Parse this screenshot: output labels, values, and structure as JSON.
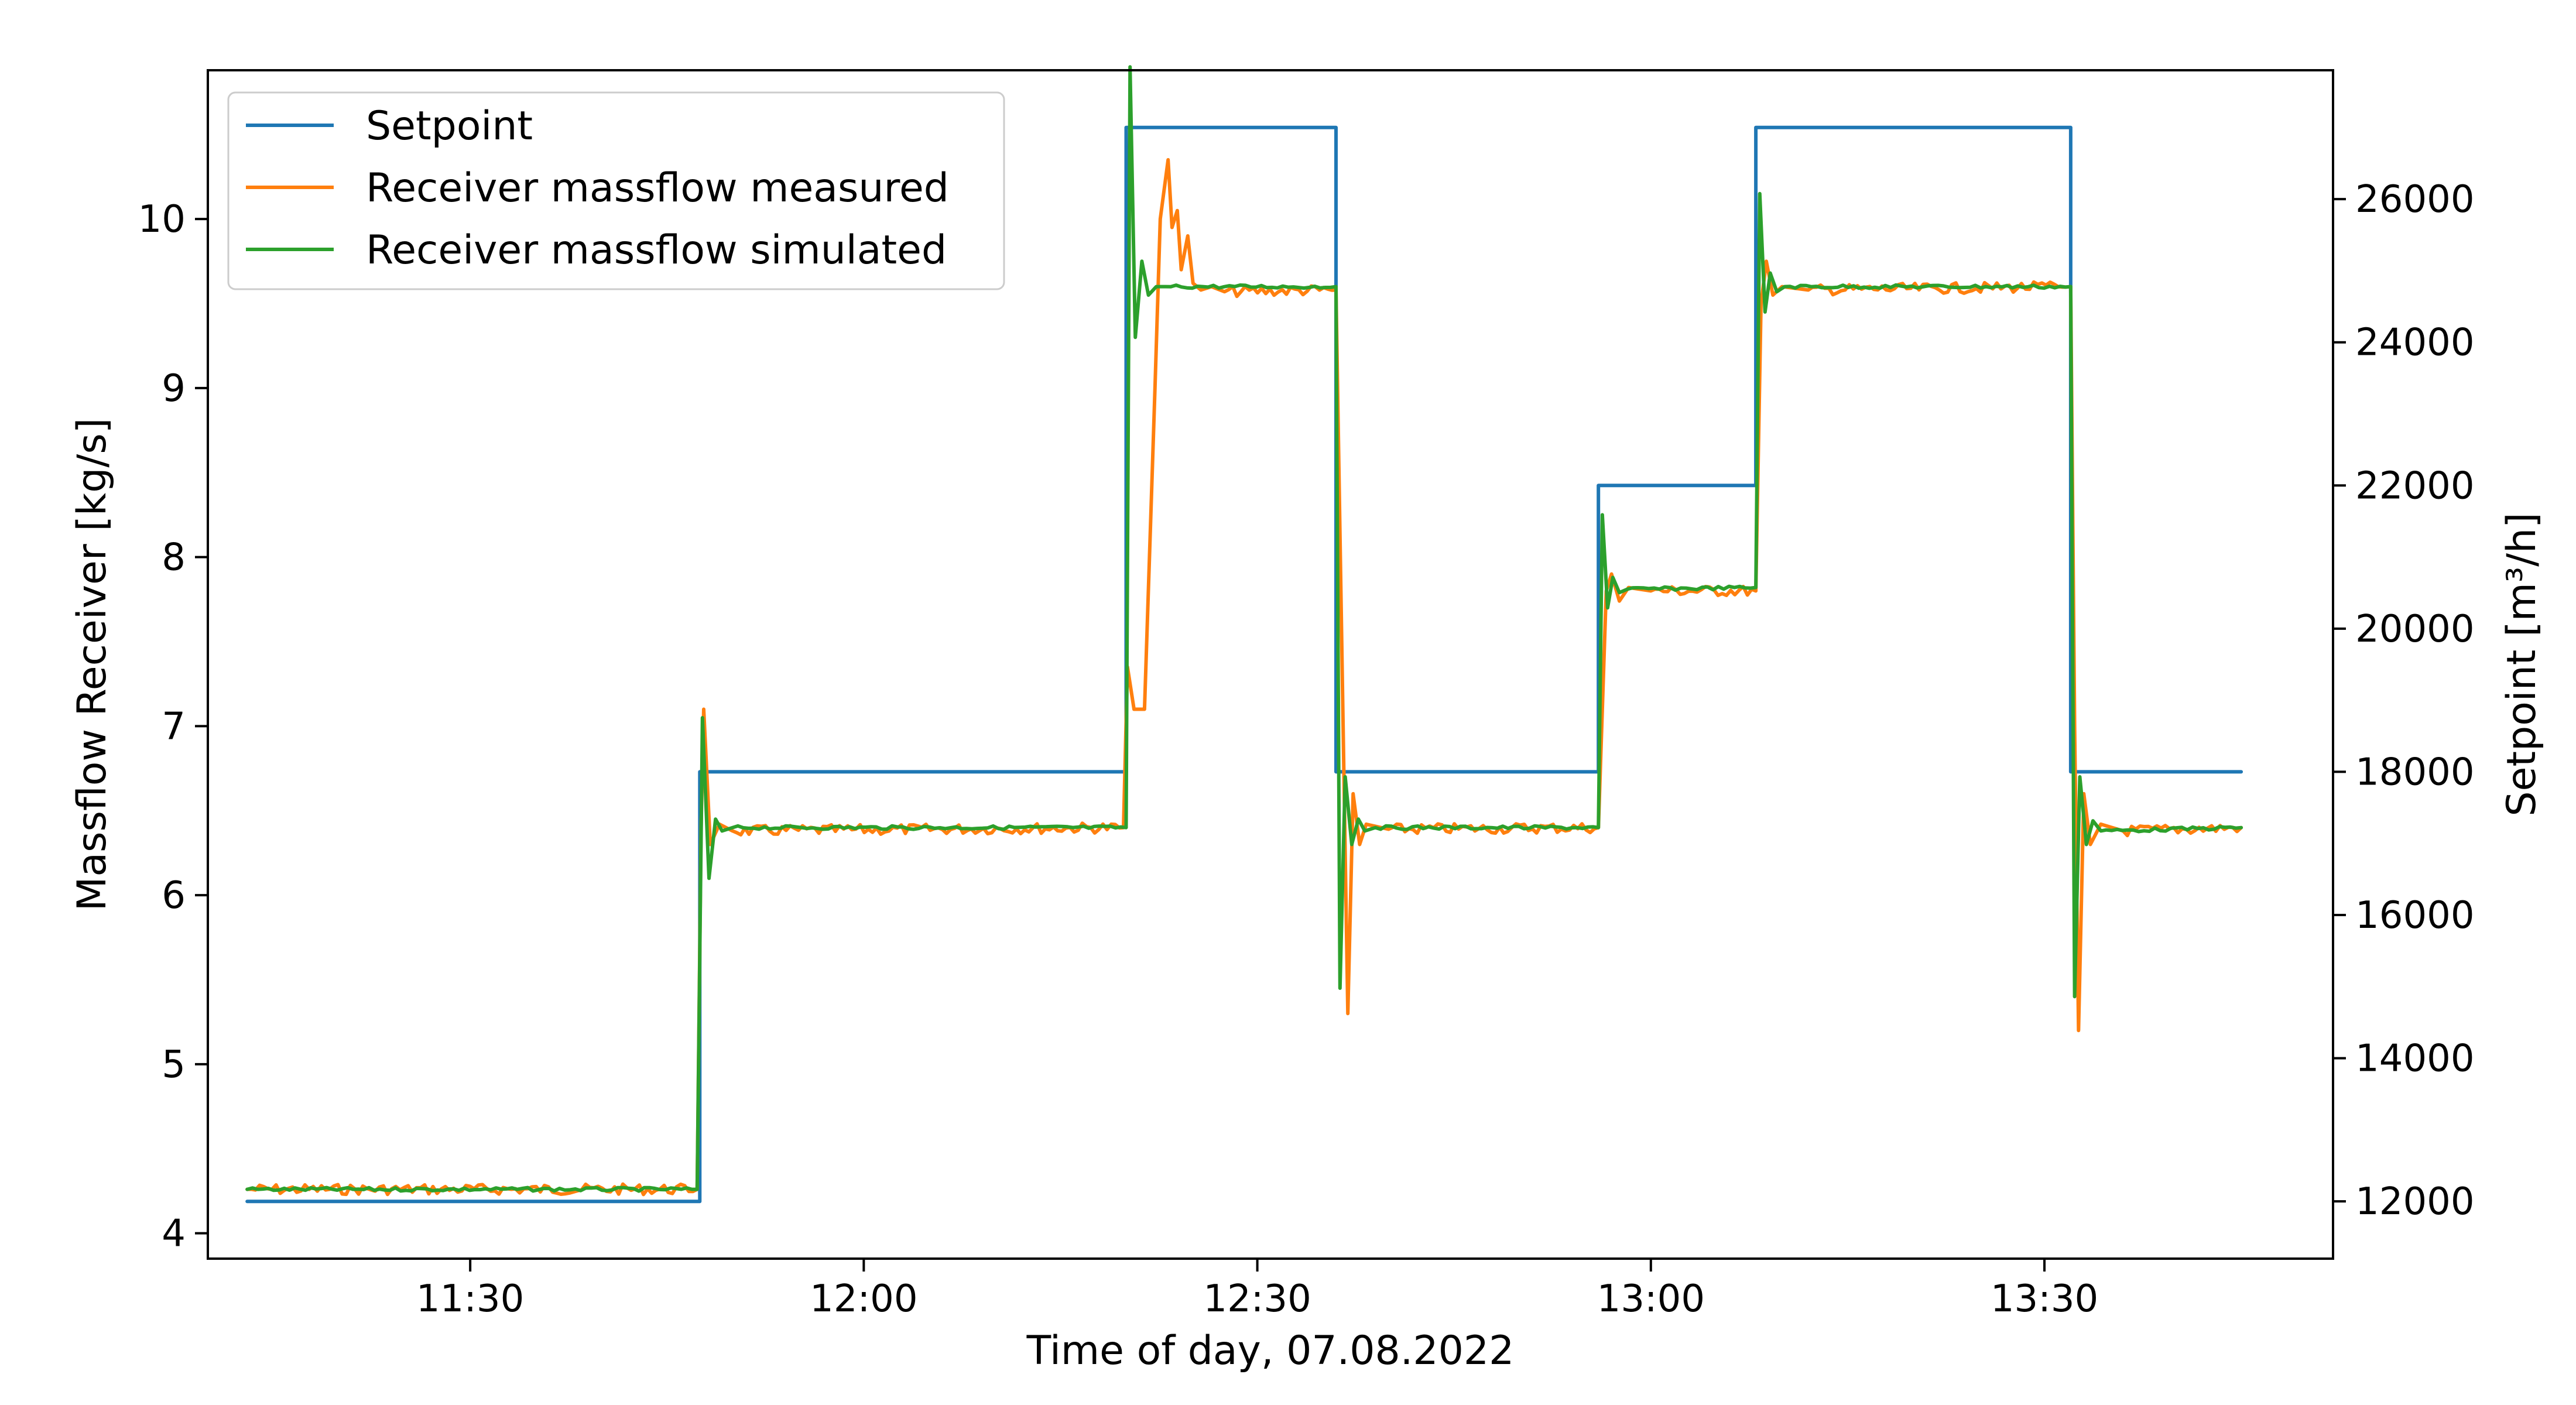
{
  "chart_data": {
    "type": "line",
    "title": "",
    "xlabel": "Time of day, 07.08.2022",
    "ylabel_left": "Massflow Receiver [kg/s]",
    "ylabel_right": "Setpoint [m³/h]",
    "x_tick_labels": [
      "11:30",
      "12:00",
      "12:30",
      "13:00",
      "13:30"
    ],
    "x_tick_values": [
      "11:30",
      "12:00",
      "12:30",
      "13:00",
      "13:30"
    ],
    "xlim": [
      "11:10",
      "13:52"
    ],
    "ylim_left": [
      3.85,
      10.88
    ],
    "ylim_right": [
      11200,
      27800
    ],
    "y_left_ticks": [
      "4",
      "5",
      "6",
      "7",
      "8",
      "9",
      "10"
    ],
    "y_right_ticks": [
      "12000",
      "14000",
      "16000",
      "18000",
      "20000",
      "22000",
      "24000",
      "26000"
    ],
    "grid": false,
    "legend_position": "top-left",
    "series": [
      {
        "name": "Setpoint",
        "axis": "right",
        "color": "#1f77b4",
        "shape": "step",
        "x": [
          "11:13",
          "11:47.5",
          "11:47.5",
          "12:20",
          "12:20",
          "12:36",
          "12:36",
          "12:56",
          "12:56",
          "13:08",
          "13:08",
          "13:32",
          "13:32",
          "13:45"
        ],
        "y": [
          12000,
          12000,
          18000,
          18000,
          27000,
          27000,
          18000,
          18000,
          22000,
          22000,
          27000,
          27000,
          18000,
          18000
        ]
      },
      {
        "name": "Receiver massflow measured",
        "axis": "left",
        "color": "#ff7f0e",
        "x": [
          "11:13",
          "11:47.3",
          "11:47.6",
          "11:47.8",
          "11:48.3",
          "11:49",
          "11:50",
          "12:19.8",
          "12:20.1",
          "12:20.6",
          "12:21.4",
          "12:22.2",
          "12:22.6",
          "12:23.2",
          "12:23.5",
          "12:23.9",
          "12:24.2",
          "12:24.7",
          "12:25.1",
          "12:25.7",
          "12:26.5",
          "12:27.5",
          "12:36",
          "12:36.5",
          "12:36.9",
          "12:37.3",
          "12:37.8",
          "12:38.3",
          "12:40",
          "12:56",
          "12:56.6",
          "12:57",
          "12:57.6",
          "12:58.3",
          "13:00",
          "13:08",
          "13:08.4",
          "13:08.8",
          "13:09.3",
          "13:10",
          "13:12",
          "13:32",
          "13:32.3",
          "13:32.6",
          "13:33",
          "13:33.5",
          "13:34.3",
          "13:36",
          "13:45"
        ],
        "y": [
          4.26,
          4.26,
          6.4,
          7.1,
          6.3,
          6.42,
          6.38,
          6.4,
          7.35,
          7.1,
          7.1,
          9.0,
          10.0,
          10.35,
          9.95,
          10.05,
          9.7,
          9.9,
          9.62,
          9.58,
          9.6,
          9.57,
          9.58,
          7.2,
          5.3,
          6.6,
          6.3,
          6.42,
          6.39,
          6.4,
          7.8,
          7.9,
          7.74,
          7.82,
          7.8,
          7.8,
          9.5,
          9.75,
          9.55,
          9.6,
          9.58,
          9.6,
          7.0,
          5.2,
          6.6,
          6.3,
          6.42,
          6.38,
          6.4
        ]
      },
      {
        "name": "Receiver massflow simulated",
        "axis": "left",
        "color": "#2ca02c",
        "x": [
          "11:13",
          "11:47.3",
          "11:47.7",
          "11:48.2",
          "11:48.7",
          "11:49.2",
          "11:50",
          "12:20",
          "12:20.3",
          "12:20.7",
          "12:21.2",
          "12:21.7",
          "12:22.3",
          "12:23",
          "12:36",
          "12:36.3",
          "12:36.7",
          "12:37.2",
          "12:37.7",
          "12:38.2",
          "12:39",
          "12:56",
          "12:56.3",
          "12:56.7",
          "12:57.1",
          "12:57.6",
          "12:58.2",
          "13:08",
          "13:08.3",
          "13:08.7",
          "13:09.1",
          "13:09.6",
          "13:10.2",
          "13:32",
          "13:32.3",
          "13:32.7",
          "13:33.2",
          "13:33.7",
          "13:34.3",
          "13:45"
        ],
        "y": [
          4.26,
          4.26,
          7.05,
          6.1,
          6.45,
          6.38,
          6.4,
          6.4,
          10.9,
          9.3,
          9.75,
          9.55,
          9.6,
          9.6,
          9.6,
          5.45,
          6.7,
          6.3,
          6.45,
          6.38,
          6.4,
          6.4,
          8.25,
          7.7,
          7.88,
          7.79,
          7.81,
          7.82,
          10.15,
          9.45,
          9.68,
          9.57,
          9.6,
          9.6,
          5.4,
          6.7,
          6.3,
          6.44,
          6.38,
          6.4
        ]
      }
    ]
  }
}
